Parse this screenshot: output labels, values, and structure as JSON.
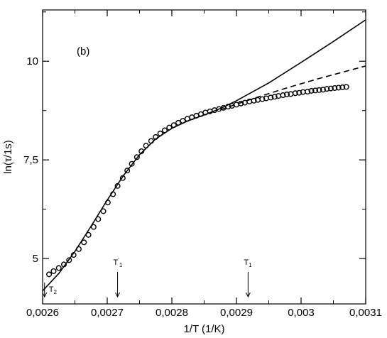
{
  "chart_data": {
    "type": "scatter",
    "title": "",
    "panel_label": "(b)",
    "xlabel": "1/T (1/K)",
    "ylabel": "ln(τ/1s)",
    "xlim": [
      0.0026,
      0.0031
    ],
    "ylim": [
      3.85,
      11.3
    ],
    "grid": false,
    "x_ticks": [
      0.0026,
      0.0027,
      0.0028,
      0.0029,
      0.003,
      0.0031
    ],
    "x_tick_labels": [
      "0,0026",
      "0,0027",
      "0,0028",
      "0,0029",
      "0,003",
      "0,0031"
    ],
    "y_ticks": [
      5,
      7.5,
      10
    ],
    "y_tick_labels": [
      "5",
      "7,5",
      "10"
    ],
    "series": [
      {
        "style": "open-circles",
        "x": [
          0.00261,
          0.002617,
          0.002625,
          0.002633,
          0.002641,
          0.002648,
          0.002656,
          0.002664,
          0.002671,
          0.002679,
          0.002686,
          0.002694,
          0.002701,
          0.002709,
          0.002716,
          0.002724,
          0.002731,
          0.002738,
          0.002746,
          0.002753,
          0.00276,
          0.002768,
          0.002775,
          0.002782,
          0.002789,
          0.002796,
          0.002803,
          0.00281,
          0.002817,
          0.002824,
          0.002831,
          0.002838,
          0.002845,
          0.002852,
          0.002859,
          0.002866,
          0.002873,
          0.00288,
          0.002887,
          0.002893,
          0.0029,
          0.002907,
          0.002913,
          0.00292,
          0.002927,
          0.002933,
          0.00294,
          0.002946,
          0.002953,
          0.002959,
          0.002965,
          0.002972,
          0.002978,
          0.002984,
          0.002991,
          0.002997,
          0.003003,
          0.00301,
          0.003016,
          0.003022,
          0.003028,
          0.003034,
          0.00304,
          0.003046,
          0.003052,
          0.003058,
          0.003064,
          0.00307
        ],
        "y": [
          4.6,
          4.68,
          4.76,
          4.85,
          4.96,
          5.09,
          5.24,
          5.41,
          5.6,
          5.8,
          6.0,
          6.2,
          6.42,
          6.63,
          6.84,
          7.04,
          7.23,
          7.4,
          7.57,
          7.72,
          7.86,
          7.98,
          8.08,
          8.17,
          8.25,
          8.32,
          8.38,
          8.44,
          8.49,
          8.54,
          8.58,
          8.62,
          8.66,
          8.7,
          8.73,
          8.76,
          8.79,
          8.82,
          8.85,
          8.87,
          8.9,
          8.93,
          8.95,
          8.98,
          9.0,
          9.02,
          9.04,
          9.06,
          9.08,
          9.1,
          9.12,
          9.14,
          9.16,
          9.17,
          9.19,
          9.2,
          9.22,
          9.23,
          9.25,
          9.26,
          9.27,
          9.28,
          9.3,
          9.31,
          9.32,
          9.33,
          9.34,
          9.35
        ]
      },
      {
        "style": "solid-line",
        "x": [
          0.0026,
          0.002625,
          0.00265,
          0.002675,
          0.0027,
          0.002725,
          0.00275,
          0.002775,
          0.0028,
          0.002825,
          0.00285,
          0.002875,
          0.0029,
          0.00295,
          0.003,
          0.00305,
          0.0031
        ],
        "y": [
          4.18,
          4.62,
          5.18,
          5.82,
          6.48,
          7.1,
          7.63,
          8.03,
          8.3,
          8.49,
          8.64,
          8.8,
          9.0,
          9.45,
          9.97,
          10.5,
          11.05
        ]
      },
      {
        "style": "dashed-line",
        "x": [
          0.002875,
          0.0029,
          0.002925,
          0.00295,
          0.002975,
          0.003,
          0.003025,
          0.00305,
          0.003075,
          0.0031
        ],
        "y": [
          8.77,
          8.91,
          9.05,
          9.18,
          9.31,
          9.43,
          9.55,
          9.66,
          9.77,
          9.88
        ]
      }
    ],
    "annotations": [
      {
        "x": 0.002603,
        "base": "T",
        "sub": "2",
        "sup": ""
      },
      {
        "x": 0.002716,
        "base": "T",
        "sub": "1",
        "sup": "'"
      },
      {
        "x": 0.002918,
        "base": "T",
        "sub": "1",
        "sup": ""
      }
    ]
  }
}
